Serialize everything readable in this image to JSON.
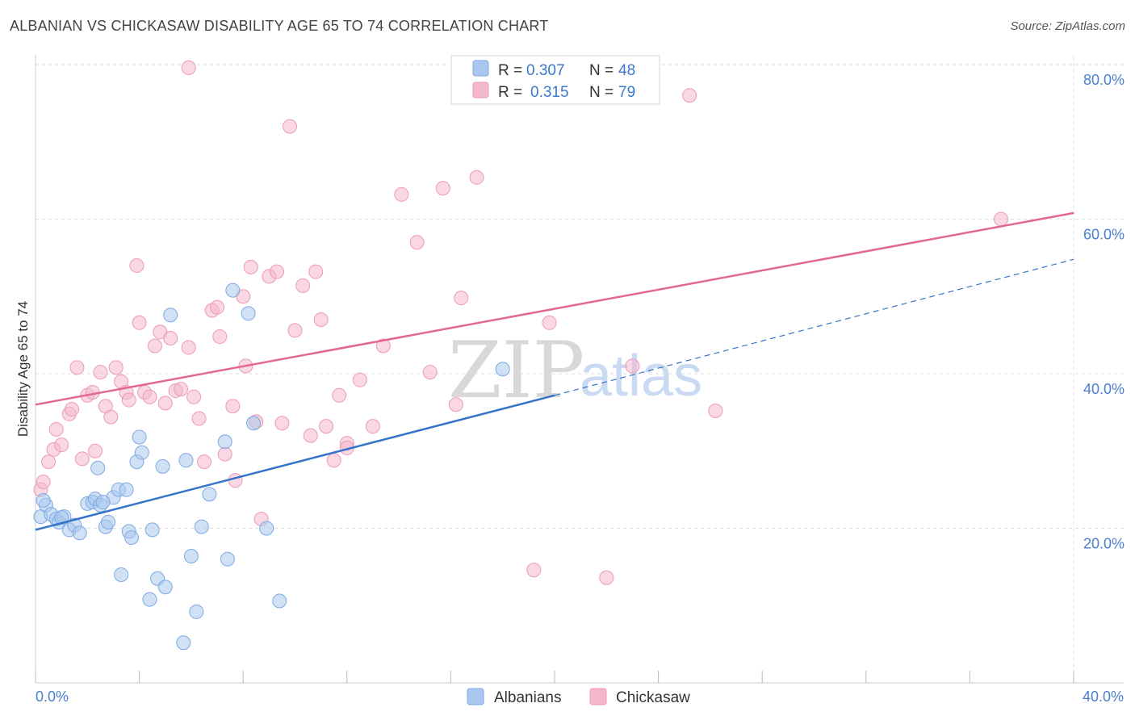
{
  "title": "ALBANIAN VS CHICKASAW DISABILITY AGE 65 TO 74 CORRELATION CHART",
  "source": "Source: ZipAtlas.com",
  "watermark": {
    "zip": "ZIP",
    "atlas": "atlas"
  },
  "colors": {
    "albanian_fill": "#aac8ef",
    "albanian_line": "#3574c9",
    "chickasaw_fill": "#f4b8cc",
    "chickasaw_line": "#e26793",
    "tick_text": "#4a7fd0",
    "grid": "#dddddd"
  },
  "legend": {
    "rows": [
      {
        "r_label": "R =",
        "r_value": "0.307",
        "n_label": "N =",
        "n_value": "48"
      },
      {
        "r_label": "R =",
        "r_value": "0.315",
        "n_label": "N =",
        "n_value": "79"
      }
    ]
  },
  "bottom_legend": [
    "Albanians",
    "Chickasaw"
  ],
  "chart_data": {
    "type": "scatter",
    "ylabel": "Disability Age 65 to 74",
    "xlim": [
      0,
      40
    ],
    "ylim": [
      0,
      80
    ],
    "x_tick_labels": [
      "0.0%",
      "40.0%"
    ],
    "y_ticks": [
      20,
      40,
      60,
      80
    ],
    "y_tick_labels": [
      "20.0%",
      "40.0%",
      "60.0%",
      "80.0%"
    ],
    "grid": true,
    "legend_placement": "top-center",
    "series": [
      {
        "name": "Albanians",
        "R": 0.307,
        "N": 48,
        "trend": {
          "x": [
            0,
            20
          ],
          "y": [
            19.8,
            37.2
          ]
        },
        "trend_dashed_extension": {
          "x": [
            20,
            40
          ],
          "y": [
            37.2,
            54.8
          ]
        },
        "points": [
          [
            0.2,
            21.5
          ],
          [
            0.4,
            23.0
          ],
          [
            0.6,
            21.8
          ],
          [
            0.8,
            21.2
          ],
          [
            0.9,
            20.8
          ],
          [
            1.1,
            21.5
          ],
          [
            1.3,
            19.8
          ],
          [
            1.5,
            20.4
          ],
          [
            1.7,
            19.4
          ],
          [
            2.0,
            23.2
          ],
          [
            2.2,
            23.4
          ],
          [
            2.3,
            23.8
          ],
          [
            2.4,
            27.8
          ],
          [
            2.5,
            23.0
          ],
          [
            2.7,
            20.2
          ],
          [
            2.8,
            20.8
          ],
          [
            3.0,
            24.0
          ],
          [
            3.2,
            25.0
          ],
          [
            3.3,
            14.0
          ],
          [
            3.5,
            25.0
          ],
          [
            3.6,
            19.6
          ],
          [
            3.7,
            18.8
          ],
          [
            3.9,
            28.6
          ],
          [
            4.0,
            31.8
          ],
          [
            4.1,
            29.8
          ],
          [
            4.4,
            10.8
          ],
          [
            4.5,
            19.8
          ],
          [
            4.7,
            13.5
          ],
          [
            4.9,
            28.0
          ],
          [
            5.0,
            12.4
          ],
          [
            5.2,
            47.6
          ],
          [
            5.7,
            5.2
          ],
          [
            5.8,
            28.8
          ],
          [
            6.0,
            16.4
          ],
          [
            6.2,
            9.2
          ],
          [
            6.4,
            20.2
          ],
          [
            6.7,
            24.4
          ],
          [
            7.3,
            31.2
          ],
          [
            7.4,
            16.0
          ],
          [
            7.6,
            50.8
          ],
          [
            8.2,
            47.8
          ],
          [
            8.4,
            33.6
          ],
          [
            8.9,
            20.0
          ],
          [
            9.4,
            10.6
          ],
          [
            18.0,
            40.6
          ],
          [
            0.3,
            23.6
          ],
          [
            1.0,
            21.4
          ],
          [
            2.6,
            23.4
          ]
        ]
      },
      {
        "name": "Chickasaw",
        "R": 0.315,
        "N": 79,
        "trend": {
          "x": [
            0,
            40
          ],
          "y": [
            36.0,
            60.8
          ]
        },
        "points": [
          [
            0.2,
            25.0
          ],
          [
            0.3,
            26.0
          ],
          [
            0.5,
            28.6
          ],
          [
            0.7,
            30.2
          ],
          [
            0.8,
            32.8
          ],
          [
            1.0,
            30.8
          ],
          [
            1.3,
            34.8
          ],
          [
            1.4,
            35.4
          ],
          [
            1.6,
            40.8
          ],
          [
            1.8,
            29.0
          ],
          [
            2.0,
            37.2
          ],
          [
            2.2,
            37.6
          ],
          [
            2.3,
            30.0
          ],
          [
            2.5,
            40.2
          ],
          [
            2.7,
            35.8
          ],
          [
            2.9,
            34.4
          ],
          [
            3.1,
            40.8
          ],
          [
            3.3,
            39.0
          ],
          [
            3.5,
            37.6
          ],
          [
            3.6,
            36.6
          ],
          [
            3.9,
            54.0
          ],
          [
            4.0,
            46.6
          ],
          [
            4.2,
            37.6
          ],
          [
            4.4,
            37.0
          ],
          [
            4.6,
            43.6
          ],
          [
            4.8,
            45.4
          ],
          [
            5.0,
            36.2
          ],
          [
            5.2,
            44.6
          ],
          [
            5.4,
            37.8
          ],
          [
            5.6,
            38.0
          ],
          [
            5.9,
            43.4
          ],
          [
            6.1,
            37.0
          ],
          [
            6.3,
            34.2
          ],
          [
            6.5,
            28.6
          ],
          [
            6.8,
            48.2
          ],
          [
            7.0,
            48.6
          ],
          [
            7.1,
            44.8
          ],
          [
            7.3,
            29.6
          ],
          [
            7.6,
            35.8
          ],
          [
            7.7,
            26.2
          ],
          [
            8.0,
            50.0
          ],
          [
            8.1,
            41.0
          ],
          [
            8.3,
            53.8
          ],
          [
            8.5,
            33.8
          ],
          [
            8.7,
            21.2
          ],
          [
            9.0,
            52.6
          ],
          [
            9.3,
            53.2
          ],
          [
            9.5,
            33.6
          ],
          [
            9.8,
            72.0
          ],
          [
            10.0,
            45.6
          ],
          [
            10.3,
            51.4
          ],
          [
            10.6,
            32.0
          ],
          [
            10.8,
            53.2
          ],
          [
            11.0,
            47.0
          ],
          [
            11.2,
            33.2
          ],
          [
            11.5,
            28.8
          ],
          [
            11.7,
            37.2
          ],
          [
            12.0,
            31.0
          ],
          [
            12.5,
            39.2
          ],
          [
            13.0,
            33.2
          ],
          [
            13.4,
            43.6
          ],
          [
            14.1,
            63.2
          ],
          [
            14.7,
            57.0
          ],
          [
            15.2,
            40.2
          ],
          [
            15.7,
            64.0
          ],
          [
            16.4,
            49.8
          ],
          [
            16.2,
            36.0
          ],
          [
            17.0,
            65.4
          ],
          [
            18.8,
            76.2
          ],
          [
            19.8,
            46.6
          ],
          [
            21.2,
            76.2
          ],
          [
            22.0,
            13.6
          ],
          [
            23.0,
            41.0
          ],
          [
            25.2,
            76.0
          ],
          [
            26.2,
            35.2
          ],
          [
            37.2,
            60.0
          ],
          [
            12.0,
            30.4
          ],
          [
            5.9,
            79.6
          ],
          [
            19.2,
            14.6
          ]
        ]
      }
    ]
  }
}
